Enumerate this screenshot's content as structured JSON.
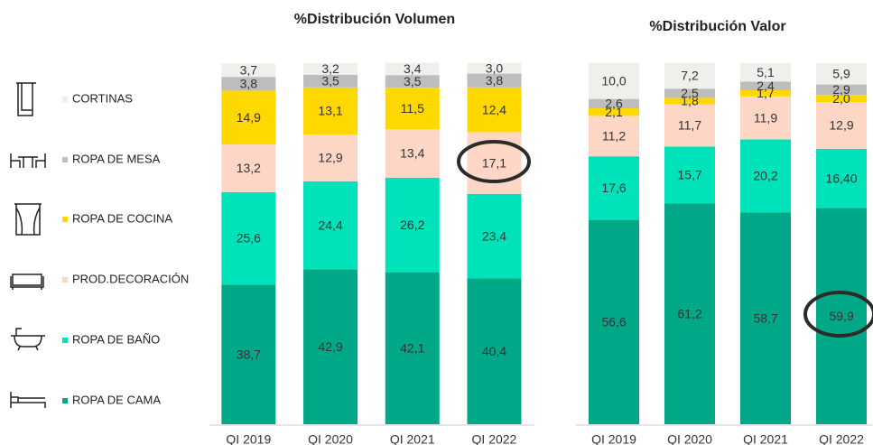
{
  "chart_data": [
    {
      "type": "stacked_bar",
      "title": "%Distribución Volumen",
      "categories": [
        "QI 2019",
        "QI 2020",
        "QI 2021",
        "QI 2022"
      ],
      "ylim": [
        0,
        100
      ],
      "series": [
        {
          "name": "ROPA DE CAMA",
          "color": "#00a887",
          "values": [
            38.7,
            42.9,
            42.1,
            40.4
          ],
          "value_labels": [
            "38,7",
            "42,9",
            "42,1",
            "40,4"
          ]
        },
        {
          "name": "ROPA DE BAÑO",
          "color": "#00e2b9",
          "values": [
            25.6,
            24.4,
            26.2,
            23.4
          ],
          "value_labels": [
            "25,6",
            "24,4",
            "26,2",
            "23,4"
          ]
        },
        {
          "name": "PROD.DECORACIÓN",
          "color": "#fdd6c6",
          "values": [
            13.2,
            12.9,
            13.4,
            17.1
          ],
          "value_labels": [
            "13,2",
            "12,9",
            "13,4",
            "17,1"
          ]
        },
        {
          "name": "ROPA DE COCINA",
          "color": "#ffd800",
          "values": [
            14.9,
            13.1,
            11.5,
            12.4
          ],
          "value_labels": [
            "14,9",
            "13,1",
            "11,5",
            "12,4"
          ]
        },
        {
          "name": "ROPA DE MESA",
          "color": "#bdbdbd",
          "values": [
            3.8,
            3.5,
            3.5,
            3.8
          ],
          "value_labels": [
            "3,8",
            "3,5",
            "3,5",
            "3,8"
          ]
        },
        {
          "name": "CORTINAS",
          "color": "#efefeb",
          "values": [
            3.7,
            3.2,
            3.4,
            3.0
          ],
          "value_labels": [
            "3,7",
            "3,2",
            "3,4",
            "3,0"
          ]
        }
      ]
    },
    {
      "type": "stacked_bar",
      "title": "%Distribución Valor",
      "categories": [
        "QI 2019",
        "QI 2020",
        "QI 2021",
        "QI 2022"
      ],
      "ylim": [
        0,
        100
      ],
      "series": [
        {
          "color": "#00a887",
          "values": [
            56.6,
            61.2,
            58.7,
            59.9
          ],
          "value_labels": [
            "56,6",
            "61,2",
            "58,7",
            "59,9"
          ]
        },
        {
          "color": "#00e2b9",
          "values": [
            17.6,
            15.7,
            20.2,
            16.4
          ],
          "value_labels": [
            "17,6",
            "15,7",
            "20,2",
            "16,40"
          ]
        },
        {
          "color": "#fdd6c6",
          "values": [
            11.2,
            11.7,
            11.9,
            12.9
          ],
          "value_labels": [
            "11,2",
            "11,7",
            "11,9",
            "12,9"
          ]
        },
        {
          "color": "#ffd800",
          "values": [
            2.1,
            1.8,
            1.7,
            2.0
          ],
          "value_labels": [
            "2,1",
            "1,8",
            "1,7",
            "2,0"
          ]
        },
        {
          "color": "#bdbdbd",
          "values": [
            2.6,
            2.5,
            2.4,
            2.9
          ],
          "value_labels": [
            "2,6",
            "2,5",
            "2,4",
            "2,9"
          ]
        },
        {
          "color": "#efefeb",
          "values": [
            10.0,
            7.2,
            5.1,
            5.9
          ],
          "value_labels": [
            "10,0",
            "7,2",
            "5,1",
            "5,9"
          ]
        }
      ]
    }
  ]
}
